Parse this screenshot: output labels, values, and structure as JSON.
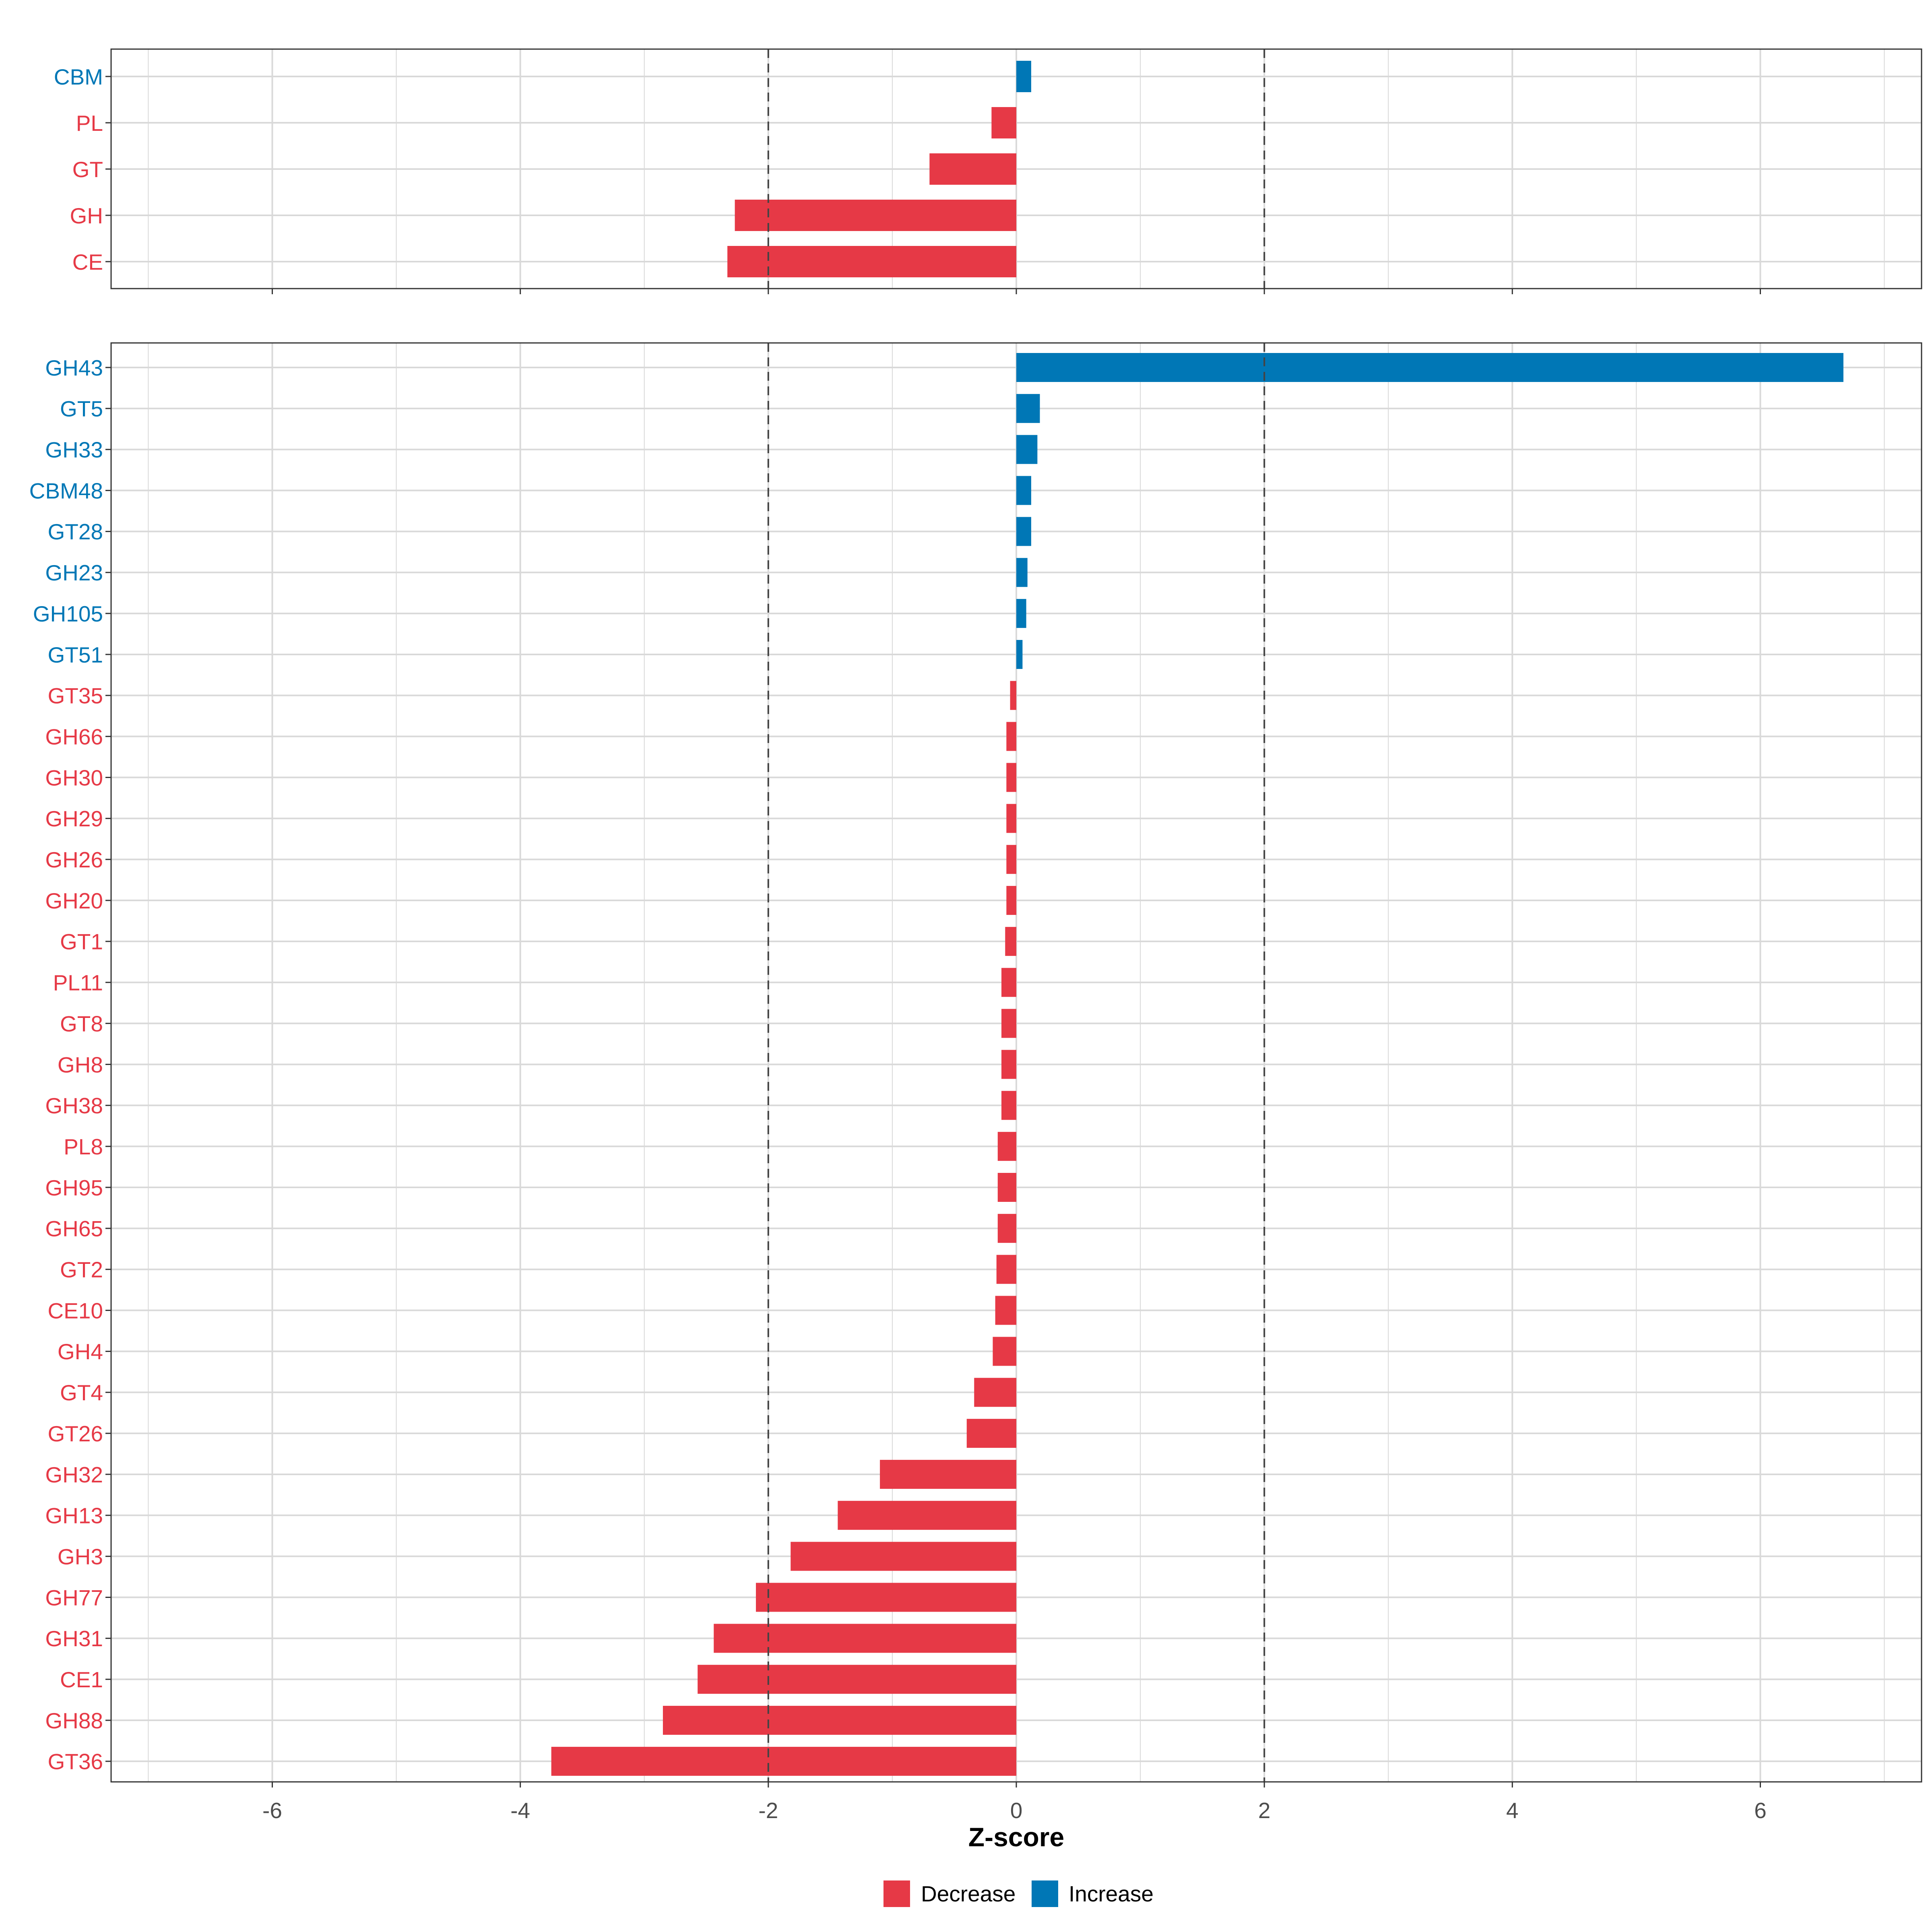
{
  "chart_data": [
    {
      "type": "bar",
      "orientation": "horizontal",
      "panel": "top",
      "categories": [
        "CBM",
        "PL",
        "GT",
        "GH",
        "CE"
      ],
      "values": [
        0.12,
        -0.2,
        -0.7,
        -2.27,
        -2.33
      ],
      "xlim": [
        -7.3,
        7.3
      ],
      "reference_lines": [
        -2,
        2
      ]
    },
    {
      "type": "bar",
      "orientation": "horizontal",
      "panel": "bottom",
      "categories": [
        "GH43",
        "GT5",
        "GH33",
        "CBM48",
        "GT28",
        "GH23",
        "GH105",
        "GT51",
        "GT35",
        "GH66",
        "GH30",
        "GH29",
        "GH26",
        "GH20",
        "GT1",
        "PL11",
        "GT8",
        "GH8",
        "GH38",
        "PL8",
        "GH95",
        "GH65",
        "GT2",
        "CE10",
        "GH4",
        "GT4",
        "GT26",
        "GH32",
        "GH13",
        "GH3",
        "GH77",
        "GH31",
        "CE1",
        "GH88",
        "GT36"
      ],
      "values": [
        6.67,
        0.19,
        0.17,
        0.12,
        0.12,
        0.09,
        0.08,
        0.05,
        -0.05,
        -0.08,
        -0.08,
        -0.08,
        -0.08,
        -0.08,
        -0.09,
        -0.12,
        -0.12,
        -0.12,
        -0.12,
        -0.15,
        -0.15,
        -0.15,
        -0.16,
        -0.17,
        -0.19,
        -0.34,
        -0.4,
        -1.1,
        -1.44,
        -1.82,
        -2.1,
        -2.44,
        -2.57,
        -2.85,
        -3.75
      ],
      "xlim": [
        -7.3,
        7.3
      ],
      "reference_lines": [
        -2,
        2
      ],
      "xticks": [
        "-6",
        "-4",
        "-2",
        "0",
        "2",
        "4",
        "6"
      ],
      "xtick_values": [
        -6,
        -4,
        -2,
        0,
        2,
        4,
        6
      ],
      "xlabel": "Z-score"
    }
  ],
  "legend": {
    "items": [
      {
        "label": "Decrease",
        "color": "#e63946"
      },
      {
        "label": "Increase",
        "color": "#0077b6"
      }
    ]
  },
  "colors": {
    "increase": "#0077b6",
    "decrease": "#e63946",
    "grid": "#d9d9d9",
    "frame": "#333333",
    "ref_line": "#444444",
    "tick_text": "#4d4d4d"
  }
}
